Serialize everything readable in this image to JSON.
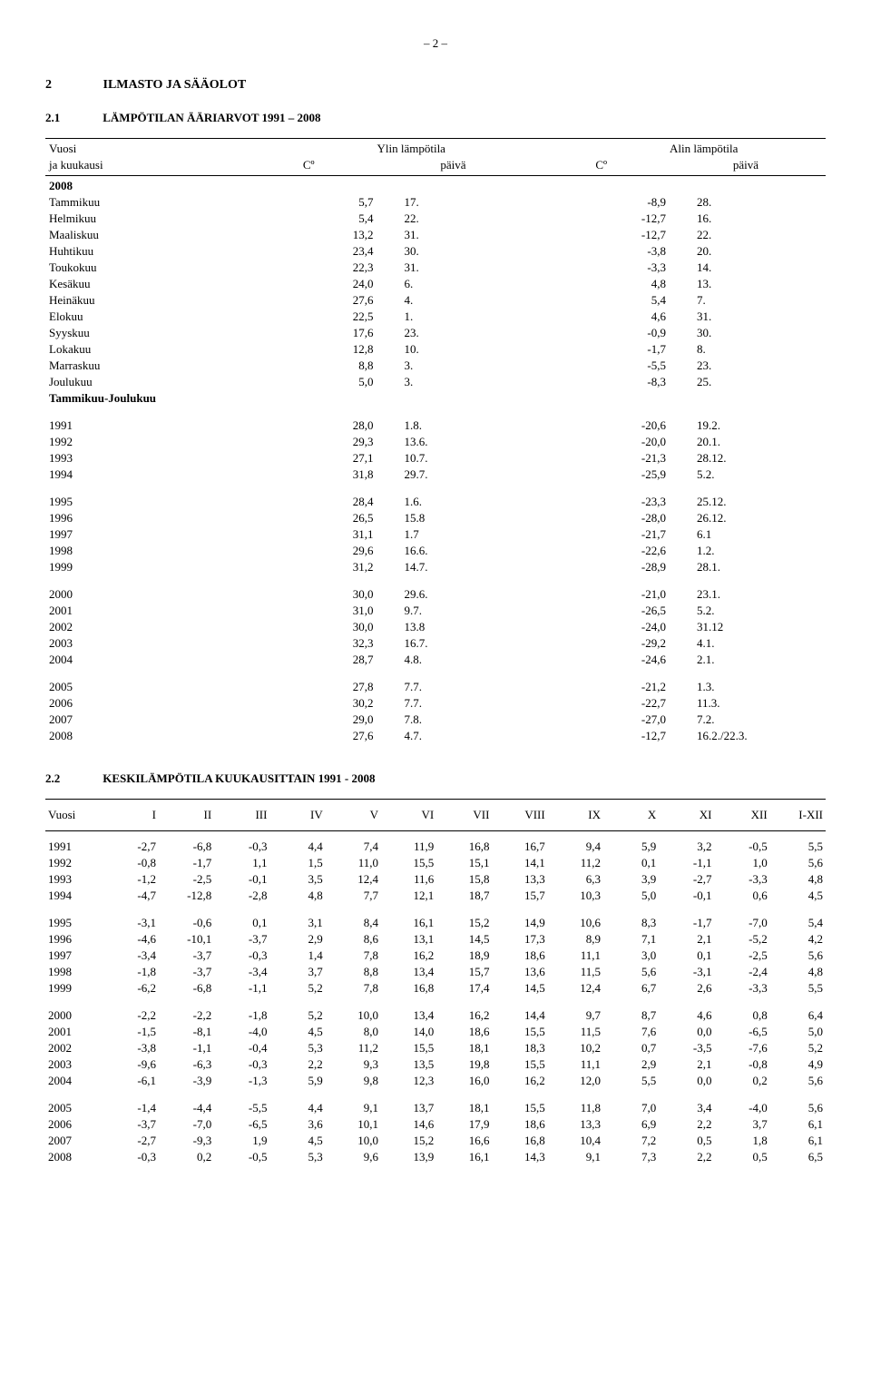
{
  "page_number_text": "– 2 –",
  "section": {
    "num": "2",
    "title": "ILMASTO JA SÄÄOLOT"
  },
  "sub1": {
    "num": "2.1",
    "title": "LÄMPÖTILAN ÄÄRIARVOT 1991 – 2008",
    "head": {
      "vuosi_line1": "Vuosi",
      "vuosi_line2": "ja kuukausi",
      "ylin": "Ylin lämpötila",
      "alin": "Alin lämpötila",
      "co": "Cº",
      "paiva": "päivä"
    },
    "year_label": "2008",
    "months": [
      {
        "name": "Tammikuu",
        "hi": "5,7",
        "hid": "17.",
        "lo": "-8,9",
        "lod": "28."
      },
      {
        "name": "Helmikuu",
        "hi": "5,4",
        "hid": "22.",
        "lo": "-12,7",
        "lod": "16."
      },
      {
        "name": "Maaliskuu",
        "hi": "13,2",
        "hid": "31.",
        "lo": "-12,7",
        "lod": "22."
      },
      {
        "name": "Huhtikuu",
        "hi": "23,4",
        "hid": "30.",
        "lo": "-3,8",
        "lod": "20."
      },
      {
        "name": "Toukokuu",
        "hi": "22,3",
        "hid": "31.",
        "lo": "-3,3",
        "lod": "14."
      },
      {
        "name": "Kesäkuu",
        "hi": "24,0",
        "hid": "6.",
        "lo": "4,8",
        "lod": "13."
      },
      {
        "name": "Heinäkuu",
        "hi": "27,6",
        "hid": "4.",
        "lo": "5,4",
        "lod": "7."
      },
      {
        "name": "Elokuu",
        "hi": "22,5",
        "hid": "1.",
        "lo": "4,6",
        "lod": "31."
      },
      {
        "name": "Syyskuu",
        "hi": "17,6",
        "hid": "23.",
        "lo": "-0,9",
        "lod": "30."
      },
      {
        "name": "Lokakuu",
        "hi": "12,8",
        "hid": "10.",
        "lo": "-1,7",
        "lod": "8."
      },
      {
        "name": "Marraskuu",
        "hi": "8,8",
        "hid": "3.",
        "lo": "-5,5",
        "lod": "23."
      },
      {
        "name": "Joulukuu",
        "hi": "5,0",
        "hid": "3.",
        "lo": "-8,3",
        "lod": "25."
      }
    ],
    "range_label": "Tammikuu-Joulukuu",
    "year_groups": [
      [
        {
          "y": "1991",
          "hi": "28,0",
          "hid": "1.8.",
          "lo": "-20,6",
          "lod": "19.2."
        },
        {
          "y": "1992",
          "hi": "29,3",
          "hid": "13.6.",
          "lo": "-20,0",
          "lod": "20.1."
        },
        {
          "y": "1993",
          "hi": "27,1",
          "hid": "10.7.",
          "lo": "-21,3",
          "lod": "28.12."
        },
        {
          "y": "1994",
          "hi": "31,8",
          "hid": "29.7.",
          "lo": "-25,9",
          "lod": "5.2."
        }
      ],
      [
        {
          "y": "1995",
          "hi": "28,4",
          "hid": "1.6.",
          "lo": "-23,3",
          "lod": "25.12."
        },
        {
          "y": "1996",
          "hi": "26,5",
          "hid": "15.8",
          "lo": "-28,0",
          "lod": "26.12."
        },
        {
          "y": "1997",
          "hi": "31,1",
          "hid": "1.7",
          "lo": "-21,7",
          "lod": "6.1"
        },
        {
          "y": "1998",
          "hi": "29,6",
          "hid": "16.6.",
          "lo": "-22,6",
          "lod": "1.2."
        },
        {
          "y": "1999",
          "hi": "31,2",
          "hid": "14.7.",
          "lo": "-28,9",
          "lod": "28.1."
        }
      ],
      [
        {
          "y": "2000",
          "hi": "30,0",
          "hid": "29.6.",
          "lo": "-21,0",
          "lod": "23.1."
        },
        {
          "y": "2001",
          "hi": "31,0",
          "hid": "9.7.",
          "lo": "-26,5",
          "lod": "5.2."
        },
        {
          "y": "2002",
          "hi": "30,0",
          "hid": "13.8",
          "lo": "-24,0",
          "lod": "31.12"
        },
        {
          "y": "2003",
          "hi": "32,3",
          "hid": "16.7.",
          "lo": "-29,2",
          "lod": "4.1."
        },
        {
          "y": "2004",
          "hi": "28,7",
          "hid": "4.8.",
          "lo": "-24,6",
          "lod": "2.1."
        }
      ],
      [
        {
          "y": "2005",
          "hi": "27,8",
          "hid": "7.7.",
          "lo": "-21,2",
          "lod": "1.3."
        },
        {
          "y": "2006",
          "hi": "30,2",
          "hid": "7.7.",
          "lo": "-22,7",
          "lod": "11.3."
        },
        {
          "y": "2007",
          "hi": "29,0",
          "hid": "7.8.",
          "lo": "-27,0",
          "lod": "7.2."
        },
        {
          "y": "2008",
          "hi": "27,6",
          "hid": "4.7.",
          "lo": "-12,7",
          "lod": "16.2./22.3."
        }
      ]
    ]
  },
  "sub2": {
    "num": "2.2",
    "title": "KESKILÄMPÖTILA KUUKAUSITTAIN 1991 - 2008",
    "columns": [
      "Vuosi",
      "I",
      "II",
      "III",
      "IV",
      "V",
      "VI",
      "VII",
      "VIII",
      "IX",
      "X",
      "XI",
      "XII",
      "I-XII"
    ],
    "row_groups": [
      [
        [
          "1991",
          "-2,7",
          "-6,8",
          "-0,3",
          "4,4",
          "7,4",
          "11,9",
          "16,8",
          "16,7",
          "9,4",
          "5,9",
          "3,2",
          "-0,5",
          "5,5"
        ],
        [
          "1992",
          "-0,8",
          "-1,7",
          "1,1",
          "1,5",
          "11,0",
          "15,5",
          "15,1",
          "14,1",
          "11,2",
          "0,1",
          "-1,1",
          "1,0",
          "5,6"
        ],
        [
          "1993",
          "-1,2",
          "-2,5",
          "-0,1",
          "3,5",
          "12,4",
          "11,6",
          "15,8",
          "13,3",
          "6,3",
          "3,9",
          "-2,7",
          "-3,3",
          "4,8"
        ],
        [
          "1994",
          "-4,7",
          "-12,8",
          "-2,8",
          "4,8",
          "7,7",
          "12,1",
          "18,7",
          "15,7",
          "10,3",
          "5,0",
          "-0,1",
          "0,6",
          "4,5"
        ]
      ],
      [
        [
          "1995",
          "-3,1",
          "-0,6",
          "0,1",
          "3,1",
          "8,4",
          "16,1",
          "15,2",
          "14,9",
          "10,6",
          "8,3",
          "-1,7",
          "-7,0",
          "5,4"
        ],
        [
          "1996",
          "-4,6",
          "-10,1",
          "-3,7",
          "2,9",
          "8,6",
          "13,1",
          "14,5",
          "17,3",
          "8,9",
          "7,1",
          "2,1",
          "-5,2",
          "4,2"
        ],
        [
          "1997",
          "-3,4",
          "-3,7",
          "-0,3",
          "1,4",
          "7,8",
          "16,2",
          "18,9",
          "18,6",
          "11,1",
          "3,0",
          "0,1",
          "-2,5",
          "5,6"
        ],
        [
          "1998",
          "-1,8",
          "-3,7",
          "-3,4",
          "3,7",
          "8,8",
          "13,4",
          "15,7",
          "13,6",
          "11,5",
          "5,6",
          "-3,1",
          "-2,4",
          "4,8"
        ],
        [
          "1999",
          "-6,2",
          "-6,8",
          "-1,1",
          "5,2",
          "7,8",
          "16,8",
          "17,4",
          "14,5",
          "12,4",
          "6,7",
          "2,6",
          "-3,3",
          "5,5"
        ]
      ],
      [
        [
          "2000",
          "-2,2",
          "-2,2",
          "-1,8",
          "5,2",
          "10,0",
          "13,4",
          "16,2",
          "14,4",
          "9,7",
          "8,7",
          "4,6",
          "0,8",
          "6,4"
        ],
        [
          "2001",
          "-1,5",
          "-8,1",
          "-4,0",
          "4,5",
          "8,0",
          "14,0",
          "18,6",
          "15,5",
          "11,5",
          "7,6",
          "0,0",
          "-6,5",
          "5,0"
        ],
        [
          "2002",
          "-3,8",
          "-1,1",
          "-0,4",
          "5,3",
          "11,2",
          "15,5",
          "18,1",
          "18,3",
          "10,2",
          "0,7",
          "-3,5",
          "-7,6",
          "5,2"
        ],
        [
          "2003",
          "-9,6",
          "-6,3",
          "-0,3",
          "2,2",
          "9,3",
          "13,5",
          "19,8",
          "15,5",
          "11,1",
          "2,9",
          "2,1",
          "-0,8",
          "4,9"
        ],
        [
          "2004",
          "-6,1",
          "-3,9",
          "-1,3",
          "5,9",
          "9,8",
          "12,3",
          "16,0",
          "16,2",
          "12,0",
          "5,5",
          "0,0",
          "0,2",
          "5,6"
        ]
      ],
      [
        [
          "2005",
          "-1,4",
          "-4,4",
          "-5,5",
          "4,4",
          "9,1",
          "13,7",
          "18,1",
          "15,5",
          "11,8",
          "7,0",
          "3,4",
          "-4,0",
          "5,6"
        ],
        [
          "2006",
          "-3,7",
          "-7,0",
          "-6,5",
          "3,6",
          "10,1",
          "14,6",
          "17,9",
          "18,6",
          "13,3",
          "6,9",
          "2,2",
          "3,7",
          "6,1"
        ],
        [
          "2007",
          "-2,7",
          "-9,3",
          "1,9",
          "4,5",
          "10,0",
          "15,2",
          "16,6",
          "16,8",
          "10,4",
          "7,2",
          "0,5",
          "1,8",
          "6,1"
        ],
        [
          "2008",
          "-0,3",
          "0,2",
          "-0,5",
          "5,3",
          "9,6",
          "13,9",
          "16,1",
          "14,3",
          "9,1",
          "7,3",
          "2,2",
          "0,5",
          "6,5"
        ]
      ]
    ]
  }
}
